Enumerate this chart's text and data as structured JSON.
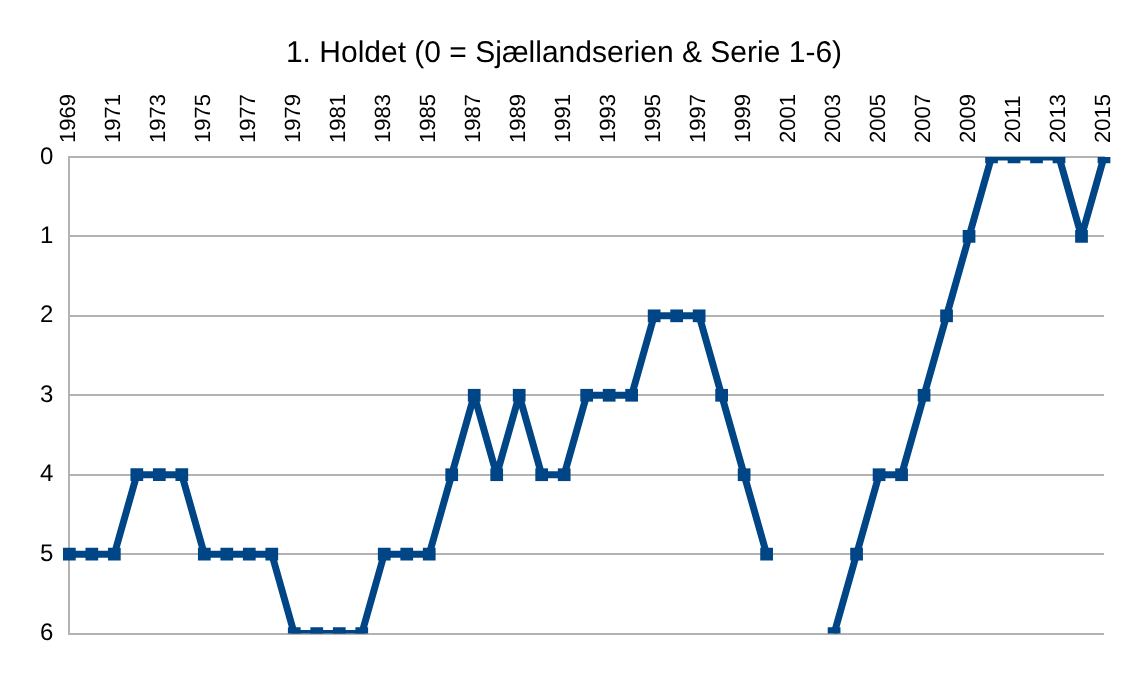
{
  "chart_data": {
    "type": "line",
    "title": "1. Holdet (0 = Sjællandserien & Serie 1-6)",
    "categories": [
      "1969",
      null,
      "1971",
      null,
      "1973",
      null,
      "1975",
      null,
      "1977",
      null,
      "1979",
      null,
      "1981",
      null,
      "1983",
      null,
      "1985",
      null,
      "1987",
      null,
      "1989",
      null,
      "1991",
      null,
      "1993",
      null,
      "1995",
      null,
      "1997",
      null,
      "1999",
      null,
      "2001",
      null,
      "2003",
      null,
      "2005",
      null,
      "2007",
      null,
      "2009",
      null,
      "2011",
      null,
      "2013",
      null,
      "2015"
    ],
    "series": [
      {
        "color": "#004586",
        "values": [
          5,
          5,
          5,
          4,
          4,
          4,
          5,
          5,
          5,
          5,
          6,
          6,
          6,
          6,
          5,
          5,
          5,
          4,
          3,
          4,
          3,
          4,
          4,
          3,
          3,
          3,
          2,
          2,
          2,
          3,
          4,
          5,
          null,
          null,
          6,
          5,
          4,
          4,
          3,
          2,
          1,
          0,
          0,
          0,
          0,
          1,
          0
        ]
      }
    ],
    "ylim": [
      6,
      0
    ],
    "yticks": [
      0,
      1,
      2,
      3,
      4,
      5,
      6
    ],
    "grid": "y",
    "legend": false,
    "marker": "square",
    "line_style": "solid"
  }
}
